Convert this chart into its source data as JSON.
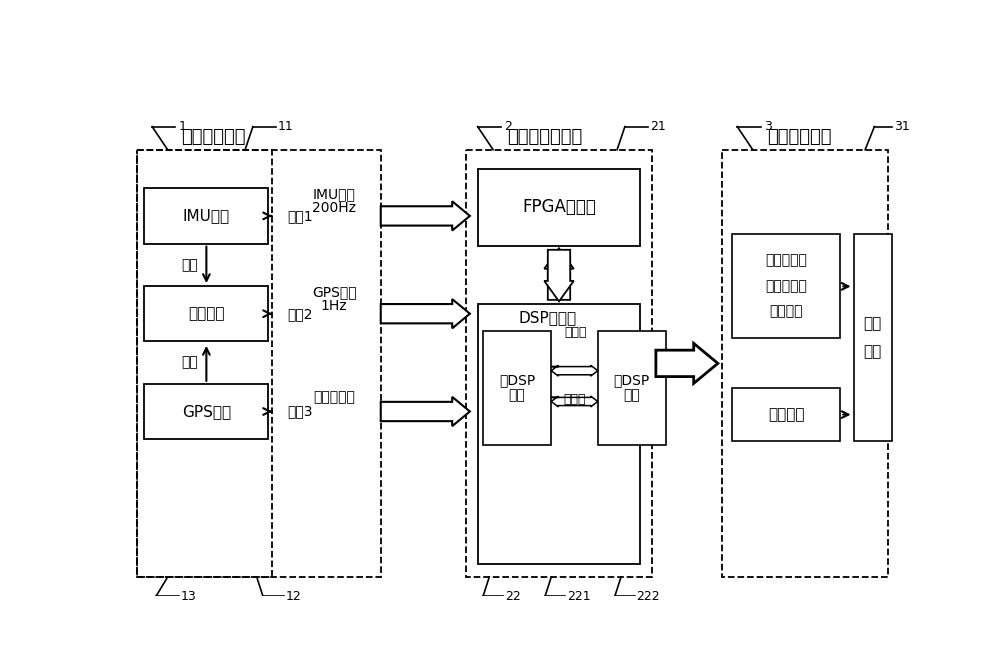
{
  "bg_color": "#ffffff",
  "module1_label": "数据收发模块",
  "module1_num": "1",
  "module1_sub_num": "11",
  "module1_sub2_num": "13",
  "module1_sub3_num": "12",
  "module2_label": "导航计算机模块",
  "module2_num": "2",
  "module2_sub_num": "21",
  "module2_sub2_num": "22",
  "module2_sub3_num": "221",
  "module2_sub4_num": "222",
  "module3_label": "数据显示模块",
  "module3_num": "3",
  "module3_sub_num": "31",
  "imu_data_label": "IMU数据",
  "serial_prog_label": "串口程序",
  "gps_data_label": "GPS数据",
  "read1_label": "读取",
  "read2_label": "读取",
  "serial1_label": "串口1",
  "serial2_label": "串口2",
  "serial3_label": "串口3",
  "imu_line1": "IMU数据",
  "imu_line2": "200Hz",
  "gps_line1": "GPS数据",
  "gps_line2": "1Hz",
  "pulse_label": "模拟秒脉冲",
  "fpga_label": "FPGA子模块",
  "dsp_label": "DSP子模块",
  "addr_line_label": "地址线",
  "data_line_label": "数据线",
  "master_dsp_line1": "主DSP",
  "master_dsp_line2": "单元",
  "slave_dsp_line1": "从DSP",
  "slave_dsp_line2": "单元",
  "pos_line1": "位置、速度",
  "pos_line2": "姿态、角速",
  "pos_line3": "度、比力",
  "realtime_err_label": "实时误差",
  "display_line1": "显示",
  "display_line2": "界面"
}
